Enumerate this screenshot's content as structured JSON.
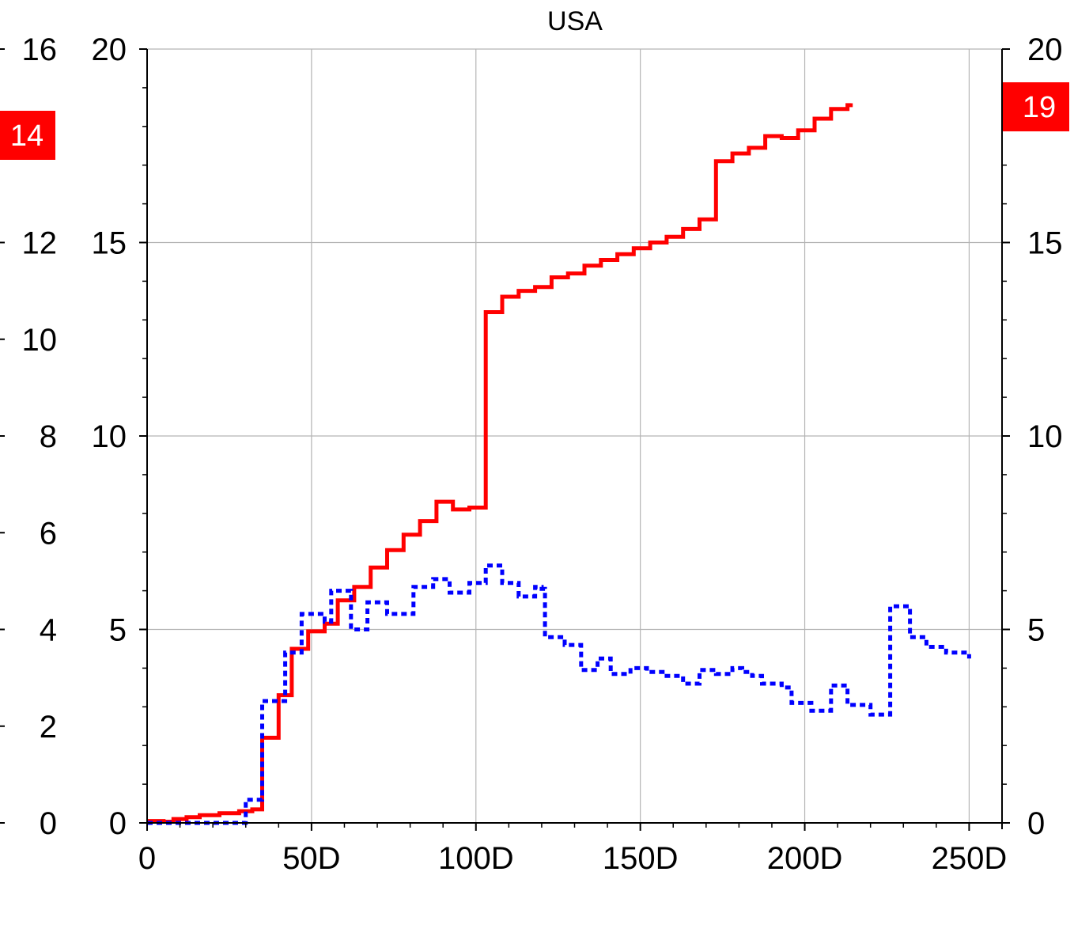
{
  "chart_data": {
    "type": "line",
    "title": "USA",
    "x_ticks": [
      {
        "value": 0,
        "label": "0"
      },
      {
        "value": 50,
        "label": "50D"
      },
      {
        "value": 100,
        "label": "100D"
      },
      {
        "value": 150,
        "label": "150D"
      },
      {
        "value": 200,
        "label": "200D"
      },
      {
        "value": 250,
        "label": "250D"
      }
    ],
    "xlim": [
      0,
      260
    ],
    "y_left_outer": {
      "range": [
        0,
        16
      ],
      "tick_labels": [
        "16",
        "12",
        "10",
        "8",
        "6",
        "4",
        "2",
        "0"
      ]
    },
    "y_left": {
      "range": [
        0,
        20
      ],
      "tick_labels": [
        "20",
        "15",
        "10",
        "5",
        "0"
      ]
    },
    "y_right": {
      "range": [
        0,
        20
      ],
      "tick_labels": [
        "20",
        "15",
        "10",
        "5",
        "0"
      ]
    },
    "grid": true,
    "series": [
      {
        "color": "#ff0000",
        "style": "solid-step",
        "axis": "left",
        "points": [
          [
            0,
            0.05
          ],
          [
            5,
            0.03
          ],
          [
            8,
            0.1
          ],
          [
            12,
            0.15
          ],
          [
            16,
            0.2
          ],
          [
            22,
            0.25
          ],
          [
            28,
            0.3
          ],
          [
            32,
            0.35
          ],
          [
            35,
            2.2
          ],
          [
            40,
            3.3
          ],
          [
            44,
            4.5
          ],
          [
            49,
            4.95
          ],
          [
            54,
            5.15
          ],
          [
            58,
            5.75
          ],
          [
            63,
            6.1
          ],
          [
            68,
            6.6
          ],
          [
            73,
            7.05
          ],
          [
            78,
            7.45
          ],
          [
            83,
            7.8
          ],
          [
            88,
            8.3
          ],
          [
            93,
            8.1
          ],
          [
            98,
            8.15
          ],
          [
            103,
            13.2
          ],
          [
            108,
            13.6
          ],
          [
            113,
            13.75
          ],
          [
            118,
            13.85
          ],
          [
            123,
            14.1
          ],
          [
            128,
            14.2
          ],
          [
            133,
            14.4
          ],
          [
            138,
            14.55
          ],
          [
            143,
            14.7
          ],
          [
            148,
            14.85
          ],
          [
            153,
            15.0
          ],
          [
            158,
            15.15
          ],
          [
            163,
            15.35
          ],
          [
            168,
            15.6
          ],
          [
            173,
            17.1
          ],
          [
            178,
            17.3
          ],
          [
            183,
            17.45
          ],
          [
            188,
            17.75
          ],
          [
            193,
            17.7
          ],
          [
            198,
            17.9
          ],
          [
            203,
            18.2
          ],
          [
            208,
            18.45
          ],
          [
            213,
            18.55
          ],
          [
            214,
            18.6
          ]
        ]
      },
      {
        "color": "#0000ff",
        "style": "dotted-step",
        "axis": "left",
        "points": [
          [
            0,
            0.0
          ],
          [
            28,
            0.0
          ],
          [
            30,
            0.6
          ],
          [
            33,
            0.6
          ],
          [
            35,
            3.15
          ],
          [
            40,
            3.15
          ],
          [
            42,
            4.4
          ],
          [
            45,
            4.4
          ],
          [
            47,
            5.4
          ],
          [
            52,
            5.4
          ],
          [
            54,
            5.2
          ],
          [
            56,
            6.0
          ],
          [
            60,
            6.0
          ],
          [
            62,
            5.0
          ],
          [
            65,
            5.0
          ],
          [
            67,
            5.7
          ],
          [
            71,
            5.7
          ],
          [
            73,
            5.4
          ],
          [
            79,
            5.4
          ],
          [
            81,
            6.1
          ],
          [
            85,
            6.1
          ],
          [
            87,
            6.3
          ],
          [
            90,
            6.3
          ],
          [
            92,
            5.95
          ],
          [
            96,
            5.95
          ],
          [
            98,
            6.2
          ],
          [
            101,
            6.2
          ],
          [
            103,
            6.65
          ],
          [
            106,
            6.65
          ],
          [
            108,
            6.2
          ],
          [
            111,
            6.2
          ],
          [
            113,
            5.85
          ],
          [
            116,
            5.85
          ],
          [
            118,
            6.1
          ],
          [
            120,
            6.05
          ],
          [
            121,
            4.8
          ],
          [
            125,
            4.8
          ],
          [
            127,
            4.6
          ],
          [
            130,
            4.6
          ],
          [
            132,
            3.95
          ],
          [
            135,
            3.95
          ],
          [
            137,
            4.25
          ],
          [
            139,
            4.25
          ],
          [
            141,
            3.85
          ],
          [
            144,
            3.85
          ],
          [
            147,
            4.0
          ],
          [
            150,
            4.0
          ],
          [
            152,
            3.9
          ],
          [
            156,
            3.9
          ],
          [
            158,
            3.8
          ],
          [
            161,
            3.8
          ],
          [
            163,
            3.6
          ],
          [
            166,
            3.6
          ],
          [
            168,
            3.95
          ],
          [
            171,
            3.95
          ],
          [
            173,
            3.85
          ],
          [
            176,
            3.85
          ],
          [
            178,
            4.0
          ],
          [
            181,
            3.9
          ],
          [
            184,
            3.8
          ],
          [
            187,
            3.6
          ],
          [
            191,
            3.6
          ],
          [
            193,
            3.5
          ],
          [
            196,
            3.1
          ],
          [
            200,
            3.1
          ],
          [
            202,
            2.9
          ],
          [
            206,
            2.9
          ],
          [
            208,
            3.55
          ],
          [
            211,
            3.55
          ],
          [
            213,
            3.05
          ],
          [
            218,
            3.05
          ],
          [
            220,
            2.8
          ],
          [
            224,
            2.8
          ],
          [
            226,
            5.6
          ],
          [
            230,
            5.6
          ],
          [
            232,
            4.8
          ],
          [
            235,
            4.8
          ],
          [
            237,
            4.55
          ],
          [
            240,
            4.55
          ],
          [
            243,
            4.4
          ],
          [
            247,
            4.4
          ],
          [
            250,
            4.25
          ]
        ]
      }
    ],
    "markers": [
      {
        "side": "left",
        "label": "14",
        "color": "#ff0000"
      },
      {
        "side": "right",
        "label": "19",
        "color": "#ff0000"
      }
    ]
  }
}
